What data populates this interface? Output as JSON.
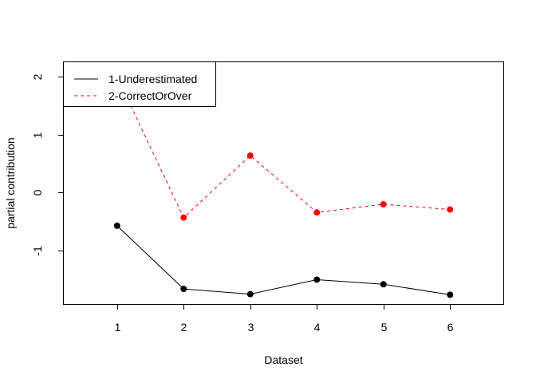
{
  "chart_data": {
    "type": "line",
    "xlabel": "Dataset",
    "ylabel": "partial contribution",
    "x": [
      1,
      2,
      3,
      4,
      5,
      6
    ],
    "xlim": [
      0.2,
      6.8
    ],
    "ylim": [
      -1.92,
      2.25
    ],
    "xticks": [
      1,
      2,
      3,
      4,
      5,
      6
    ],
    "yticks": [
      -1,
      0,
      1,
      2
    ],
    "grid": false,
    "legend_position": "top-left",
    "series": [
      {
        "name": "1-Underestimated",
        "values": [
          -0.57,
          -1.66,
          -1.75,
          -1.5,
          -1.58,
          -1.76
        ],
        "color": "#000000",
        "line_style": "solid"
      },
      {
        "name": "2-CorrectOrOver",
        "values": [
          2.0,
          -0.43,
          0.64,
          -0.34,
          -0.2,
          -0.29
        ],
        "color": "#ff0000",
        "line_style": "dashed"
      }
    ]
  }
}
